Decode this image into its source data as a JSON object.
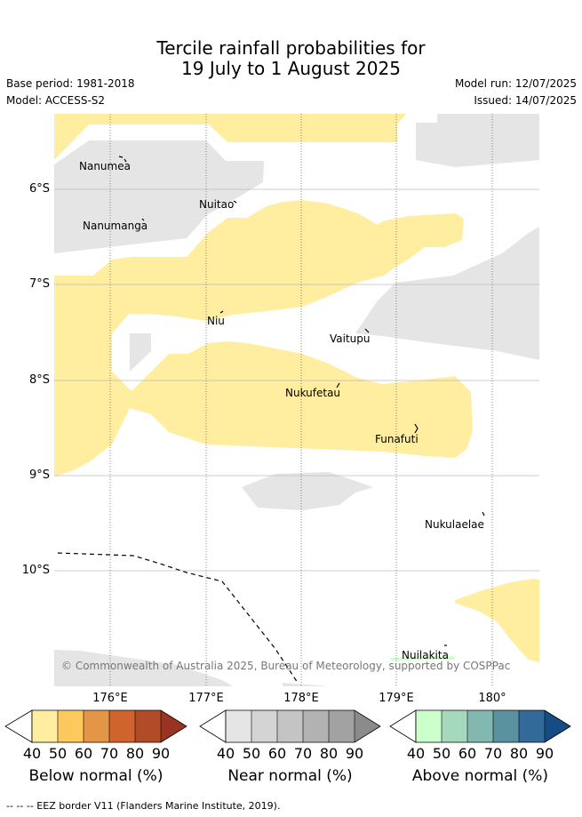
{
  "title": {
    "line1": "Tercile rainfall probabilities for",
    "line2": "19 July to 1 August 2025"
  },
  "info": {
    "base_period": "Base period: 1981-2018",
    "model": "Model: ACCESS-S2",
    "model_run": "Model run: 12/07/2025",
    "issued": "Issued: 14/07/2025"
  },
  "map": {
    "latitude_labels": [
      "6°S",
      "7°S",
      "8°S",
      "9°S",
      "10°S"
    ],
    "longitude_labels": [
      "176°E",
      "177°E",
      "178°E",
      "179°E",
      "180°"
    ],
    "places": [
      "Nanumea",
      "Nuitao",
      "Nanumanga",
      "Niu",
      "Vaitupu",
      "Nukufetau",
      "Funafuti",
      "Nukulaelae",
      "Nuilakita"
    ],
    "copyright": "© Commonwealth of Australia 2025, Bureau of Meteorology, supported by COSPPac",
    "colors": {
      "below_50": "#ffeda0",
      "near_50": "#e5e5e5",
      "above_40": "#ccffcc"
    }
  },
  "legend": {
    "ticks": [
      "40",
      "50",
      "60",
      "70",
      "80",
      "90"
    ],
    "below": {
      "label": "Below normal (%)",
      "colors": [
        "#ffeda0",
        "#fec95c",
        "#e49545",
        "#d0642d",
        "#b24b27",
        "#993322"
      ]
    },
    "near": {
      "label": "Near normal (%)",
      "colors": [
        "#e5e5e5",
        "#d4d4d4",
        "#c4c4c4",
        "#b2b2b2",
        "#a2a2a2",
        "#8b8b8b"
      ]
    },
    "above": {
      "label": "Above normal (%)",
      "colors": [
        "#ccffcc",
        "#a6d8be",
        "#82b8b0",
        "#5a92a0",
        "#326a9a",
        "#154c84"
      ]
    }
  },
  "footer": {
    "eez": "--  --  -- EEZ border V11 (Flanders Marine Institute, 2019)."
  }
}
